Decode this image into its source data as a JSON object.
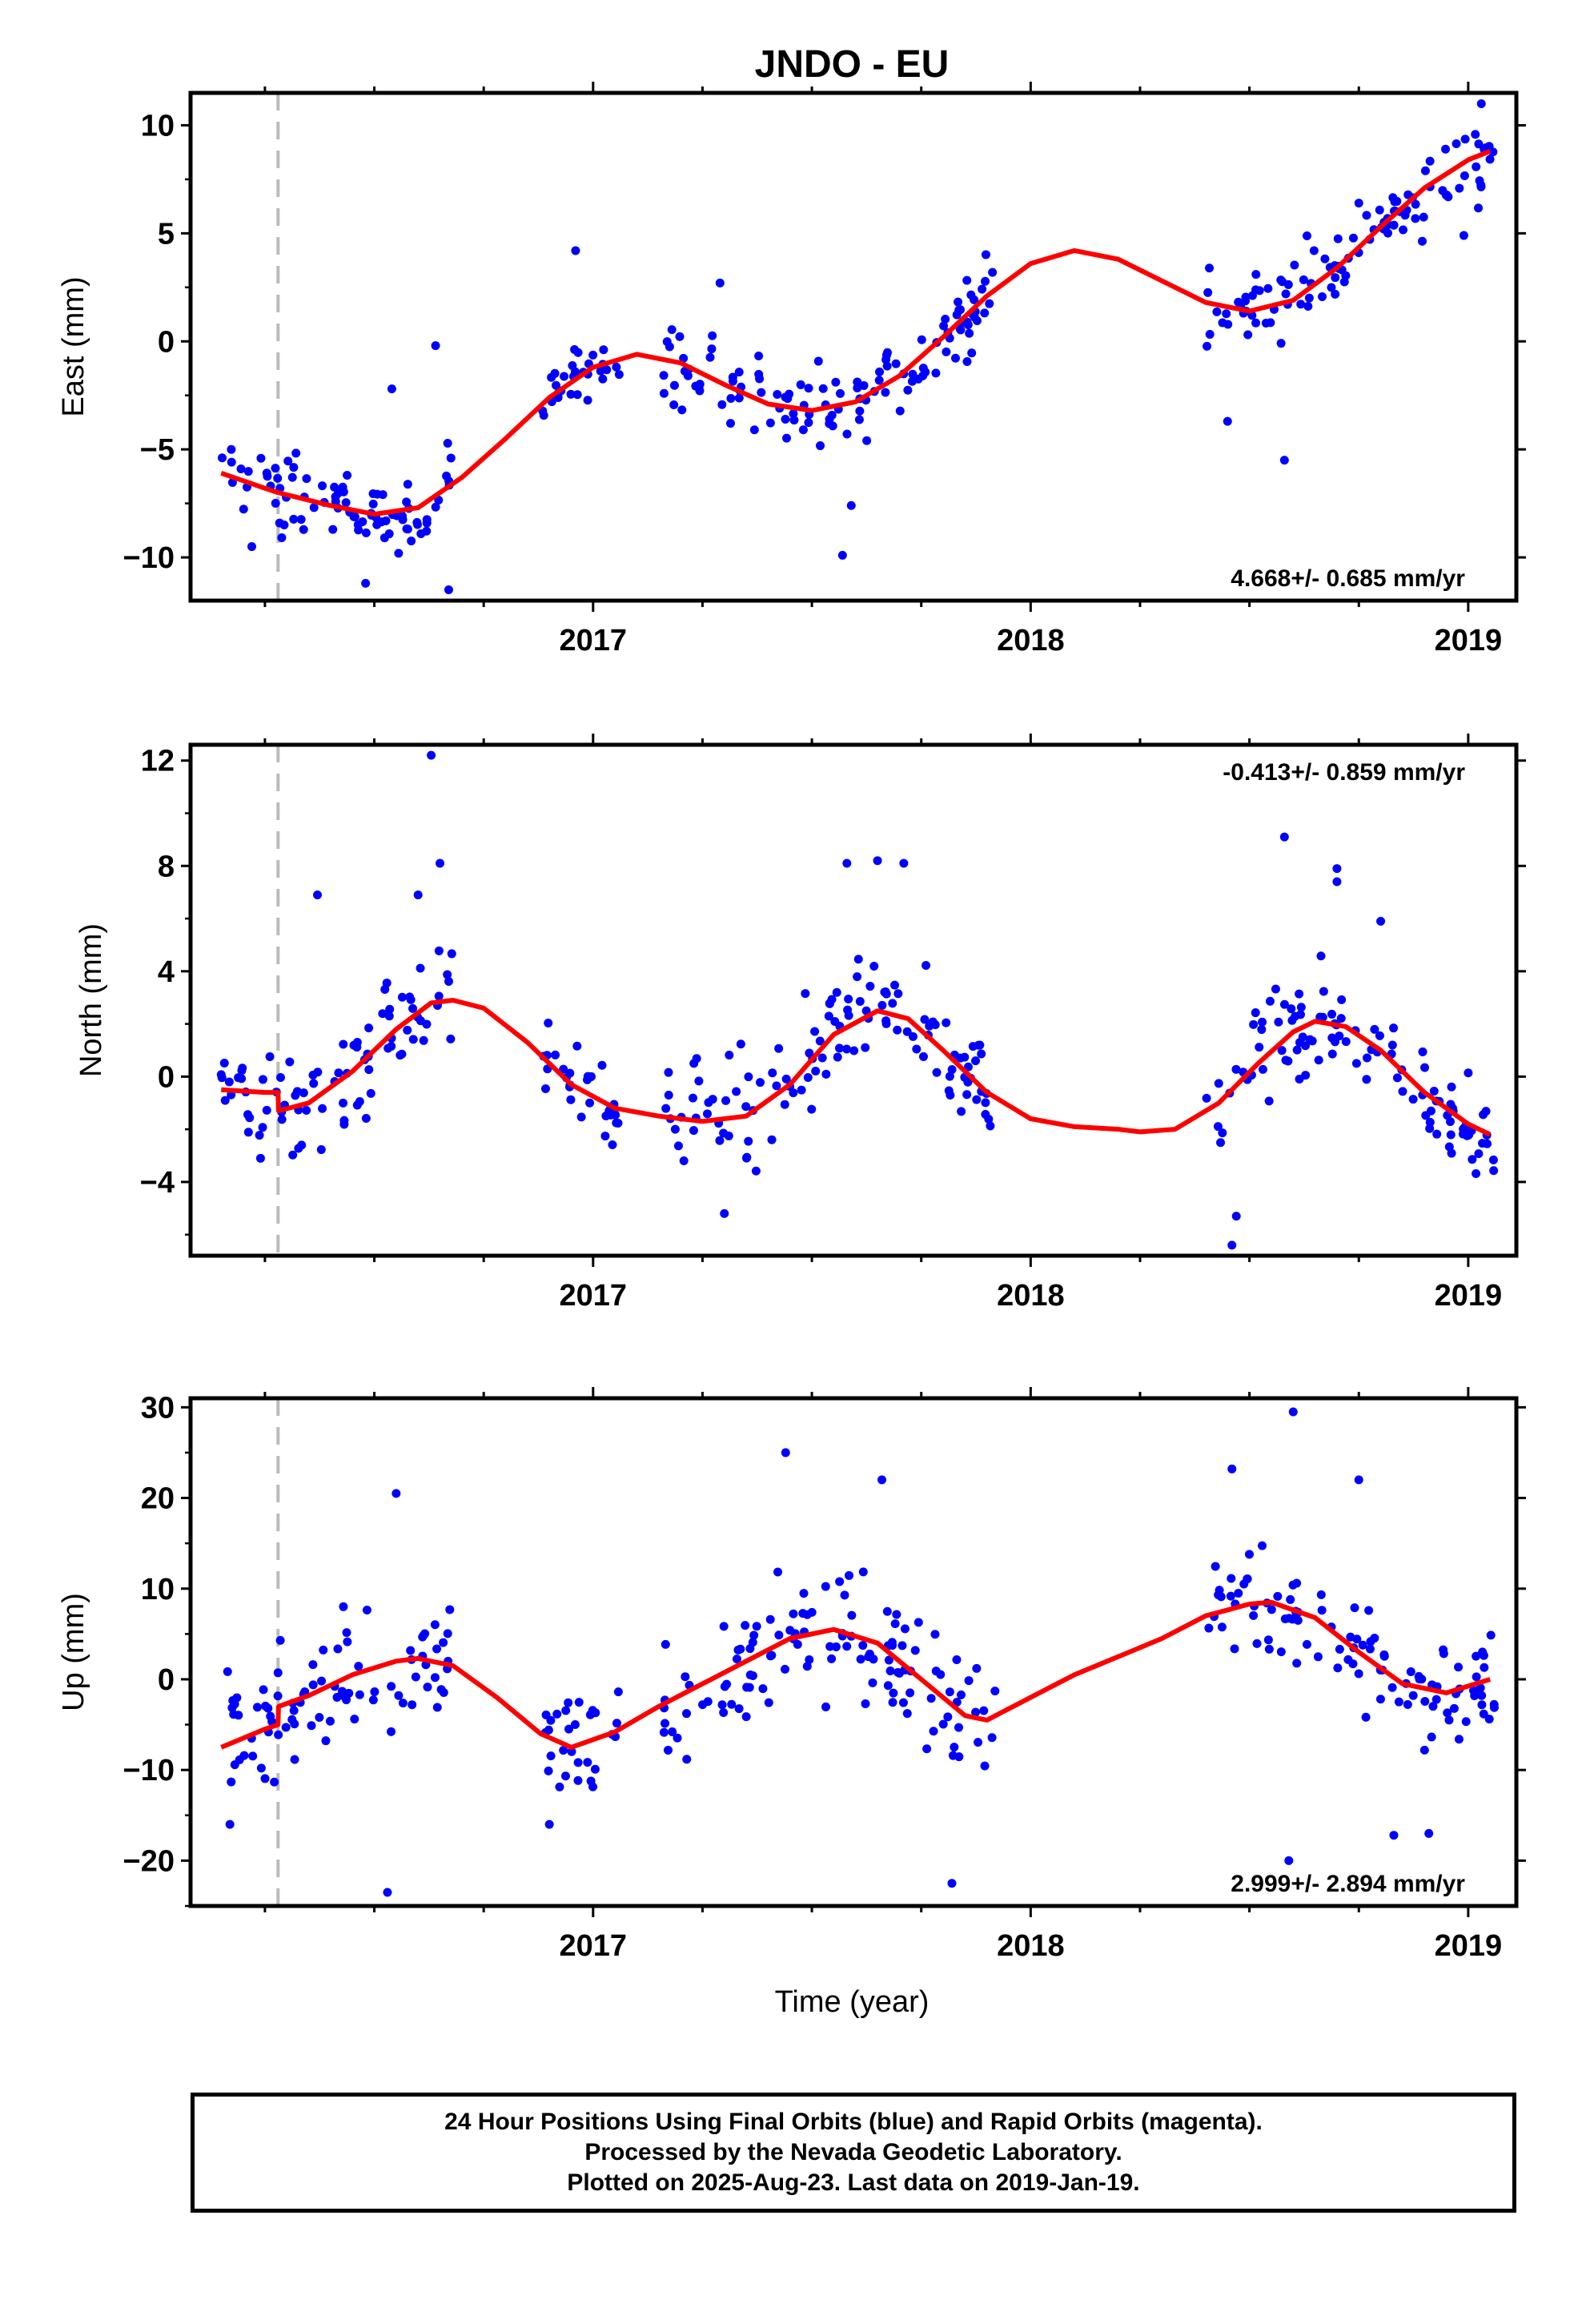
{
  "title": "JNDO - EU",
  "xlabel": "Time (year)",
  "x_tick_labels": [
    "2017",
    "2018",
    "2019"
  ],
  "caption": [
    "24 Hour Positions Using Final Orbits (blue) and Rapid Orbits (magenta).",
    "Processed by the Nevada Geodetic Laboratory.",
    "Plotted on 2025-Aug-23. Last data on 2019-Jan-19."
  ],
  "colors": {
    "points": "#0000ff",
    "fit": "#ff0000",
    "step_line": "#bbbbbb",
    "axes": "#000000"
  },
  "chart_data": [
    {
      "type": "scatter",
      "ylabel": "East (mm)",
      "rate": "4.668+/- 0.685 mm/yr",
      "rate_position": "bottom-right",
      "xlim": [
        2016.08,
        2019.11
      ],
      "ylim": [
        -12,
        11.5
      ],
      "y_ticks": [
        -10,
        -5,
        0,
        5,
        10
      ],
      "y_tick_labels": [
        "−10",
        "−5",
        "0",
        "5",
        "10"
      ],
      "step_epoch": 2016.28,
      "fit": [
        [
          2016.15,
          -6.1
        ],
        [
          2016.25,
          -6.8
        ],
        [
          2016.28,
          -7.0
        ],
        [
          2016.4,
          -7.6
        ],
        [
          2016.5,
          -8.0
        ],
        [
          2016.6,
          -7.7
        ],
        [
          2016.7,
          -6.3
        ],
        [
          2016.8,
          -4.5
        ],
        [
          2016.9,
          -2.6
        ],
        [
          2017.0,
          -1.2
        ],
        [
          2017.1,
          -0.6
        ],
        [
          2017.2,
          -1.0
        ],
        [
          2017.3,
          -2.0
        ],
        [
          2017.4,
          -2.9
        ],
        [
          2017.5,
          -3.2
        ],
        [
          2017.6,
          -2.8
        ],
        [
          2017.7,
          -1.6
        ],
        [
          2017.8,
          0.2
        ],
        [
          2017.9,
          2.1
        ],
        [
          2018.0,
          3.6
        ],
        [
          2018.1,
          4.2
        ],
        [
          2018.2,
          3.8
        ],
        [
          2018.3,
          2.8
        ],
        [
          2018.4,
          1.8
        ],
        [
          2018.5,
          1.4
        ],
        [
          2018.6,
          1.9
        ],
        [
          2018.7,
          3.4
        ],
        [
          2018.8,
          5.3
        ],
        [
          2018.9,
          7.1
        ],
        [
          2019.0,
          8.4
        ],
        [
          2019.05,
          8.8
        ]
      ],
      "clusters": [
        {
          "x0": 2016.15,
          "x1": 2016.68,
          "offset": 0.0,
          "spread": 1.5
        },
        {
          "x0": 2016.88,
          "x1": 2017.06,
          "offset": 0.0,
          "spread": 1.1
        },
        {
          "x0": 2017.16,
          "x1": 2017.92,
          "offset": 0.0,
          "spread": 1.6
        },
        {
          "x0": 2018.4,
          "x1": 2019.06,
          "offset": 0.0,
          "spread": 1.6
        }
      ],
      "outliers": [
        [
          2016.64,
          -0.2
        ],
        [
          2016.54,
          -2.2
        ],
        [
          2016.96,
          4.2
        ],
        [
          2017.29,
          2.7
        ],
        [
          2017.59,
          -7.6
        ],
        [
          2017.57,
          -9.9
        ],
        [
          2016.67,
          -11.5
        ],
        [
          2018.58,
          -5.5
        ],
        [
          2018.45,
          -3.7
        ],
        [
          2018.75,
          6.4
        ],
        [
          2019.03,
          11.0
        ],
        [
          2018.99,
          4.9
        ],
        [
          2016.22,
          -9.5
        ],
        [
          2016.48,
          -11.2
        ]
      ]
    },
    {
      "type": "scatter",
      "ylabel": "North (mm)",
      "rate": "-0.413+/- 0.859 mm/yr",
      "rate_position": "top-right",
      "xlim": [
        2016.08,
        2019.11
      ],
      "ylim": [
        -6.8,
        12.6
      ],
      "y_ticks": [
        -4,
        0,
        4,
        8,
        12
      ],
      "y_tick_labels": [
        "−4",
        "0",
        "4",
        "8",
        "12"
      ],
      "step_epoch": 2016.28,
      "fit": [
        [
          2016.15,
          -0.5
        ],
        [
          2016.25,
          -0.6
        ],
        [
          2016.28,
          -0.6
        ],
        [
          2016.281,
          -1.3
        ],
        [
          2016.35,
          -1.0
        ],
        [
          2016.45,
          0.2
        ],
        [
          2016.55,
          1.8
        ],
        [
          2016.63,
          2.8
        ],
        [
          2016.68,
          2.9
        ],
        [
          2016.75,
          2.6
        ],
        [
          2016.85,
          1.3
        ],
        [
          2016.95,
          -0.3
        ],
        [
          2017.05,
          -1.2
        ],
        [
          2017.15,
          -1.5
        ],
        [
          2017.25,
          -1.7
        ],
        [
          2017.35,
          -1.5
        ],
        [
          2017.45,
          -0.3
        ],
        [
          2017.55,
          1.6
        ],
        [
          2017.65,
          2.5
        ],
        [
          2017.72,
          2.2
        ],
        [
          2017.8,
          1.0
        ],
        [
          2017.9,
          -0.6
        ],
        [
          2018.0,
          -1.6
        ],
        [
          2018.1,
          -1.9
        ],
        [
          2018.2,
          -2.0
        ],
        [
          2018.25,
          -2.1
        ],
        [
          2018.33,
          -2.0
        ],
        [
          2018.43,
          -1.0
        ],
        [
          2018.52,
          0.5
        ],
        [
          2018.6,
          1.7
        ],
        [
          2018.65,
          2.1
        ],
        [
          2018.72,
          1.9
        ],
        [
          2018.8,
          1.0
        ],
        [
          2018.9,
          -0.6
        ],
        [
          2019.0,
          -1.8
        ],
        [
          2019.05,
          -2.2
        ]
      ],
      "clusters": [
        {
          "x0": 2016.15,
          "x1": 2016.68,
          "offset": 0.0,
          "spread": 1.8
        },
        {
          "x0": 2016.88,
          "x1": 2017.06,
          "offset": 0.0,
          "spread": 1.2
        },
        {
          "x0": 2017.16,
          "x1": 2017.92,
          "offset": 0.0,
          "spread": 1.9
        },
        {
          "x0": 2018.4,
          "x1": 2019.06,
          "offset": 0.0,
          "spread": 1.7
        }
      ],
      "outliers": [
        [
          2016.63,
          12.2
        ],
        [
          2016.65,
          8.1
        ],
        [
          2016.37,
          6.9
        ],
        [
          2016.6,
          6.9
        ],
        [
          2017.58,
          8.1
        ],
        [
          2017.65,
          8.2
        ],
        [
          2017.71,
          8.1
        ],
        [
          2018.58,
          9.1
        ],
        [
          2018.7,
          7.9
        ],
        [
          2018.7,
          7.4
        ],
        [
          2018.8,
          5.9
        ],
        [
          2018.46,
          -6.4
        ],
        [
          2018.47,
          -5.3
        ],
        [
          2017.3,
          -5.2
        ],
        [
          2016.24,
          -3.1
        ]
      ]
    },
    {
      "type": "scatter",
      "ylabel": "Up (mm)",
      "rate": "2.999+/- 2.894 mm/yr",
      "rate_position": "bottom-right",
      "xlim": [
        2016.08,
        2019.11
      ],
      "ylim": [
        -25,
        31
      ],
      "y_ticks": [
        -20,
        -10,
        0,
        10,
        20,
        30
      ],
      "y_tick_labels": [
        "−20",
        "−10",
        "0",
        "10",
        "20",
        "30"
      ],
      "step_epoch": 2016.28,
      "fit": [
        [
          2016.15,
          -7.5
        ],
        [
          2016.25,
          -5.5
        ],
        [
          2016.28,
          -5.0
        ],
        [
          2016.281,
          -3.0
        ],
        [
          2016.35,
          -1.8
        ],
        [
          2016.45,
          0.5
        ],
        [
          2016.55,
          2.0
        ],
        [
          2016.6,
          2.3
        ],
        [
          2016.68,
          1.5
        ],
        [
          2016.78,
          -2.0
        ],
        [
          2016.88,
          -6.0
        ],
        [
          2016.95,
          -7.5
        ],
        [
          2017.05,
          -5.8
        ],
        [
          2017.15,
          -3.0
        ],
        [
          2017.25,
          -0.5
        ],
        [
          2017.35,
          2.0
        ],
        [
          2017.45,
          4.5
        ],
        [
          2017.55,
          5.5
        ],
        [
          2017.65,
          4.0
        ],
        [
          2017.75,
          0.0
        ],
        [
          2017.85,
          -4.0
        ],
        [
          2017.9,
          -4.5
        ],
        [
          2018.0,
          -2.0
        ],
        [
          2018.1,
          0.5
        ],
        [
          2018.2,
          2.5
        ],
        [
          2018.3,
          4.5
        ],
        [
          2018.4,
          7.0
        ],
        [
          2018.5,
          8.3
        ],
        [
          2018.55,
          8.5
        ],
        [
          2018.65,
          6.8
        ],
        [
          2018.75,
          3.0
        ],
        [
          2018.85,
          -0.5
        ],
        [
          2018.95,
          -1.5
        ],
        [
          2019.05,
          0.0
        ]
      ],
      "clusters": [
        {
          "x0": 2016.15,
          "x1": 2016.68,
          "offset": 0.0,
          "spread": 5.5
        },
        {
          "x0": 2016.88,
          "x1": 2017.06,
          "offset": 0.0,
          "spread": 4.5
        },
        {
          "x0": 2017.16,
          "x1": 2017.92,
          "offset": 0.0,
          "spread": 6.0
        },
        {
          "x0": 2018.4,
          "x1": 2019.06,
          "offset": 0.0,
          "spread": 5.5
        }
      ],
      "outliers": [
        [
          2016.55,
          20.5
        ],
        [
          2016.53,
          -23.5
        ],
        [
          2017.44,
          25.0
        ],
        [
          2017.66,
          22.0
        ],
        [
          2018.6,
          29.5
        ],
        [
          2018.46,
          23.2
        ],
        [
          2018.75,
          22.0
        ],
        [
          2017.82,
          -22.5
        ],
        [
          2018.59,
          -20.0
        ],
        [
          2016.17,
          -16.0
        ],
        [
          2016.9,
          -16.0
        ],
        [
          2018.83,
          -17.2
        ],
        [
          2018.91,
          -17.0
        ]
      ]
    }
  ]
}
